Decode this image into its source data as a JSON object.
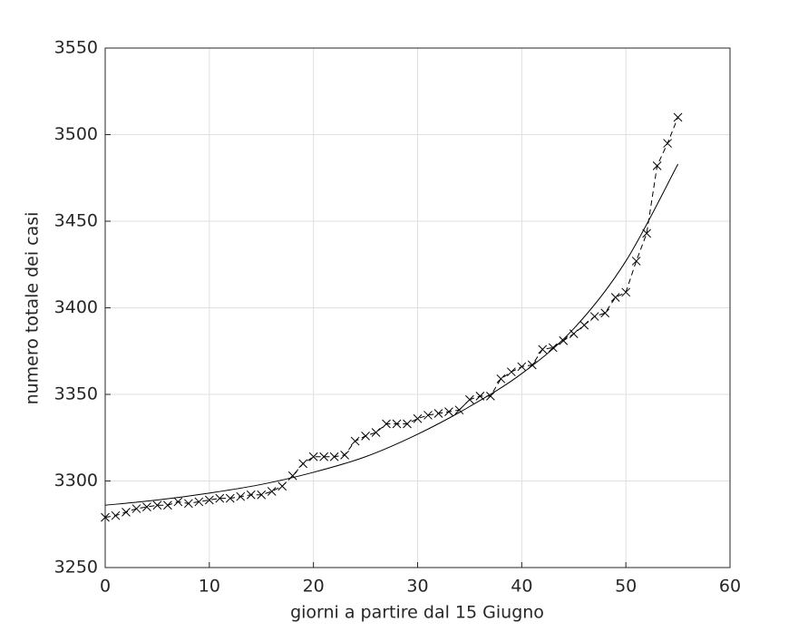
{
  "chart_data": {
    "type": "line",
    "xlabel": "giorni a partire dal 15 Giugno",
    "ylabel": "numero totale dei casi",
    "xlim": [
      0,
      60
    ],
    "xticks": [
      0,
      10,
      20,
      30,
      40,
      50,
      60
    ],
    "ylim": [
      3250,
      3550
    ],
    "yticks": [
      3250,
      3300,
      3350,
      3400,
      3450,
      3500,
      3550
    ],
    "grid": true,
    "series": [
      {
        "color": "#000000",
        "marker": "x",
        "linestyle": "dashed",
        "x": [
          0,
          1,
          2,
          3,
          4,
          5,
          6,
          7,
          8,
          9,
          10,
          11,
          12,
          13,
          14,
          15,
          16,
          17,
          18,
          19,
          20,
          21,
          22,
          23,
          24,
          25,
          26,
          27,
          28,
          29,
          30,
          31,
          32,
          33,
          34,
          35,
          36,
          37,
          38,
          39,
          40,
          41,
          42,
          43,
          44,
          45,
          46,
          47,
          48,
          49,
          50,
          51,
          52,
          53,
          54,
          55
        ],
        "values": [
          3279,
          3280,
          3282,
          3284,
          3285,
          3286,
          3286,
          3288,
          3287,
          3288,
          3289,
          3290,
          3290,
          3291,
          3292,
          3292,
          3294,
          3297,
          3303,
          3310,
          3314,
          3314,
          3314,
          3315,
          3323,
          3326,
          3328,
          3333,
          3333,
          3333,
          3336,
          3338,
          3339,
          3340,
          3341,
          3347,
          3349,
          3349,
          3359,
          3363,
          3366,
          3367,
          3376,
          3377,
          3381,
          3385,
          3390,
          3395,
          3397,
          3406,
          3409,
          3427,
          3443,
          3482,
          3495,
          3510
        ]
      },
      {
        "color": "#000000",
        "linestyle": "solid",
        "smooth": true,
        "x": [
          0,
          5,
          10,
          15,
          20,
          25,
          30,
          35,
          40,
          45,
          50,
          55
        ],
        "values": [
          3286,
          3289,
          3293,
          3298,
          3305,
          3314,
          3327,
          3343,
          3362,
          3388,
          3427,
          3483
        ]
      }
    ]
  }
}
